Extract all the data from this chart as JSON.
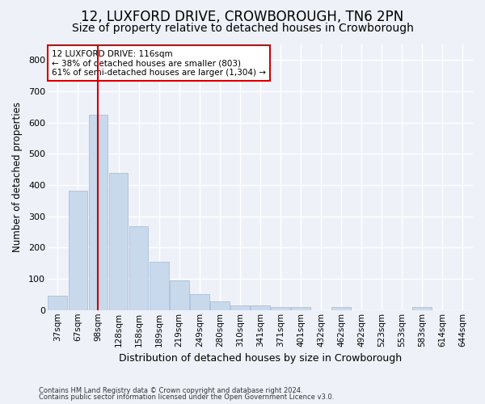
{
  "title": "12, LUXFORD DRIVE, CROWBOROUGH, TN6 2PN",
  "subtitle": "Size of property relative to detached houses in Crowborough",
  "xlabel": "Distribution of detached houses by size in Crowborough",
  "ylabel": "Number of detached properties",
  "categories": [
    "37sqm",
    "67sqm",
    "98sqm",
    "128sqm",
    "158sqm",
    "189sqm",
    "219sqm",
    "249sqm",
    "280sqm",
    "310sqm",
    "341sqm",
    "371sqm",
    "401sqm",
    "432sqm",
    "462sqm",
    "492sqm",
    "523sqm",
    "553sqm",
    "583sqm",
    "614sqm",
    "644sqm"
  ],
  "values": [
    45,
    383,
    625,
    438,
    268,
    155,
    95,
    52,
    28,
    15,
    15,
    10,
    10,
    0,
    10,
    0,
    0,
    0,
    10,
    0,
    0
  ],
  "bar_color": "#c9d9ec",
  "bar_edgecolor": "#a0b8d8",
  "vline_x": 2,
  "vline_color": "#cc0000",
  "annotation_text": "12 LUXFORD DRIVE: 116sqm\n← 38% of detached houses are smaller (803)\n61% of semi-detached houses are larger (1,304) →",
  "annotation_box_color": "#ffffff",
  "annotation_box_edgecolor": "#cc0000",
  "ylim": [
    0,
    850
  ],
  "yticks": [
    0,
    100,
    200,
    300,
    400,
    500,
    600,
    700,
    800
  ],
  "footer1": "Contains HM Land Registry data © Crown copyright and database right 2024.",
  "footer2": "Contains public sector information licensed under the Open Government Licence v3.0.",
  "background_color": "#eef2f8",
  "plot_background": "#eef2f8",
  "grid_color": "#ffffff",
  "title_fontsize": 12,
  "subtitle_fontsize": 10
}
